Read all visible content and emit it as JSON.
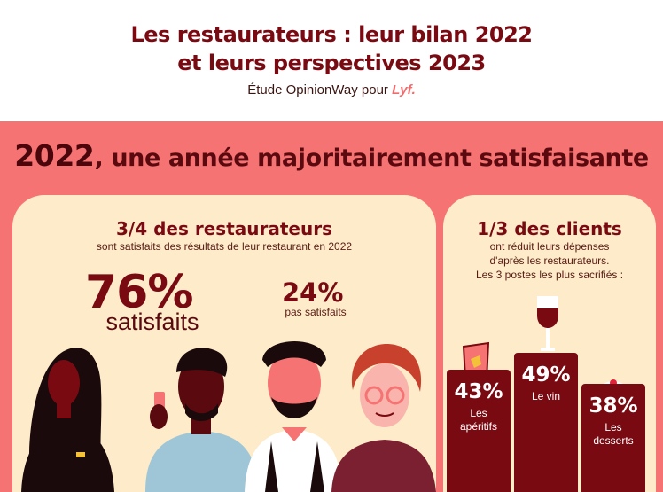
{
  "header": {
    "title_line1": "Les restaurateurs : leur bilan 2022",
    "title_line2": "et leurs perspectives 2023",
    "subtitle_prefix": "Étude OpinionWay pour",
    "brand": "Lyf."
  },
  "band": {
    "year": "2022",
    "title_rest": ", une année majoritairement satisfaisante"
  },
  "left_card": {
    "headline": "3/4 des restaurateurs",
    "subline": "sont satisfaits des résultats de leur restaurant en 2022",
    "satisfied_pct": "76%",
    "satisfied_label": "satisfaits",
    "not_satisfied_pct": "24%",
    "not_satisfied_label": "pas satisfaits"
  },
  "right_card": {
    "headline": "1/3 des clients",
    "sub1": "ont réduit leurs dépenses",
    "sub2": "d'après les restaurateurs.",
    "sub3": "Les 3 postes les plus sacrifiés :",
    "bars": [
      {
        "pct": "43%",
        "label1": "Les",
        "label2": "apéritifs",
        "value": 43
      },
      {
        "pct": "49%",
        "label1": "Le vin",
        "label2": "",
        "value": 49
      },
      {
        "pct": "38%",
        "label1": "Les",
        "label2": "desserts",
        "value": 38
      }
    ]
  },
  "colors": {
    "dark_red": "#7a0a12",
    "coral": "#f57373",
    "cream": "#fdebc9"
  }
}
